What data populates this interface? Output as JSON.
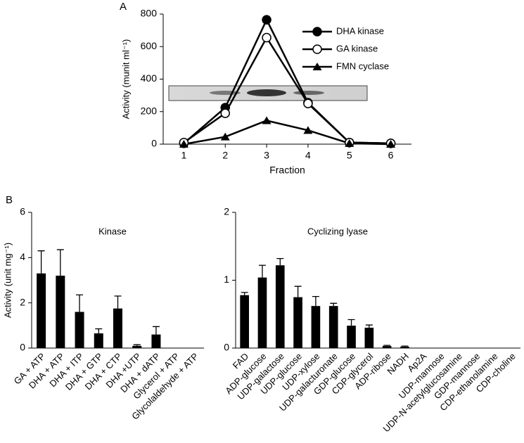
{
  "chart_data": [
    {
      "type": "line",
      "panel": "A",
      "xlabel": "Fraction",
      "ylabel": "Activity (munit ml⁻¹)",
      "categories": [
        "1",
        "2",
        "3",
        "4",
        "5",
        "6"
      ],
      "series": [
        {
          "name": "DHA kinase",
          "color": "#000000",
          "marker": "circle",
          "values": [
            5,
            225,
            765,
            255,
            10,
            5
          ]
        },
        {
          "name": "GA kinase",
          "color": "#000000",
          "marker": "open-circle",
          "values": [
            10,
            190,
            655,
            250,
            10,
            5
          ]
        },
        {
          "name": "FMN cyclase",
          "color": "#000000",
          "marker": "triangle",
          "values": [
            0,
            45,
            145,
            85,
            5,
            0
          ]
        }
      ],
      "ylim": [
        0,
        800
      ],
      "yticks": [
        0,
        200,
        400,
        600,
        800
      ],
      "legend": "upper right"
    },
    {
      "type": "bar",
      "panel": "B",
      "ylabel": "Activity (unit mg⁻¹)",
      "annotation": "Kinase",
      "color": "#000000",
      "categories": [
        "GA + ATP",
        "DHA + ATP",
        "DHA + ITP",
        "DHA + GTP",
        "DHA + CTP",
        "DHA +UTP",
        "DHA + dATP",
        "Glycerol + ATP",
        "Glycolaldehyde + ATP"
      ],
      "values": [
        3.3,
        3.2,
        1.6,
        0.65,
        1.75,
        0.1,
        0.6,
        0,
        0
      ],
      "errors": [
        1.0,
        1.15,
        0.75,
        0.2,
        0.55,
        0.05,
        0.35,
        0,
        0
      ],
      "ylim": [
        0,
        6
      ],
      "yticks": [
        0,
        2,
        4,
        6
      ]
    },
    {
      "type": "bar",
      "annotation": "Cyclizing lyase",
      "color": "#000000",
      "categories": [
        "FAD",
        "ADP-glucose",
        "UDP-galactose",
        "UDP-glucose",
        "UDP-xylose",
        "UDP-galacturonate",
        "GDP-glucose",
        "CDP-glycerol",
        "ADP-ribose",
        "NADH",
        "Ap2A",
        "UDP-mannose",
        "UDP-N-acetylglucosamine",
        "GDP-mannose",
        "CDP-ethanolamine",
        "CDP-choline"
      ],
      "values": [
        0.78,
        1.04,
        1.22,
        0.75,
        0.62,
        0.62,
        0.33,
        0.3,
        0.03,
        0.02,
        0,
        0,
        0,
        0,
        0,
        0
      ],
      "errors": [
        0.04,
        0.18,
        0.1,
        0.16,
        0.14,
        0.04,
        0.09,
        0.04,
        0.01,
        0.01,
        0,
        0,
        0,
        0,
        0,
        0
      ],
      "ylim": [
        0,
        2
      ],
      "yticks": [
        0,
        1,
        2
      ]
    }
  ]
}
